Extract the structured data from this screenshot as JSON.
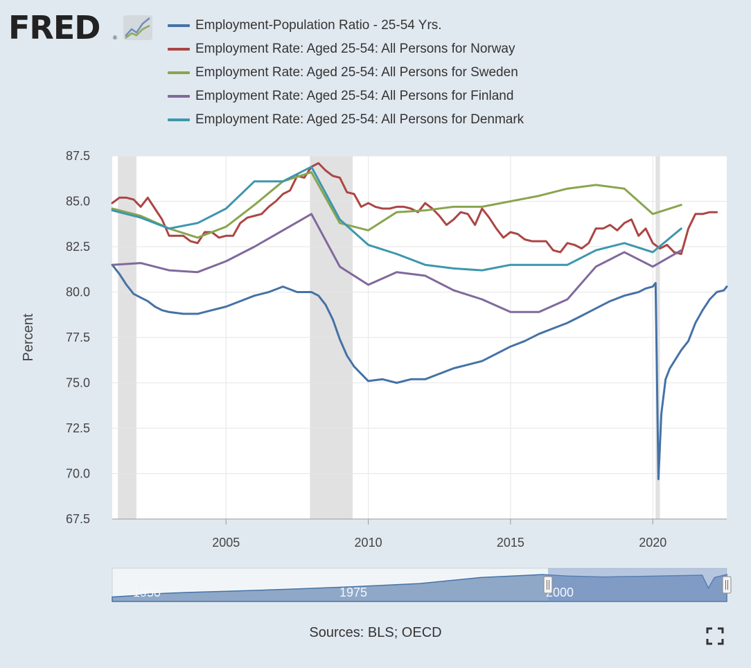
{
  "header": {
    "logo_text": "FRED",
    "logo_reg": "®"
  },
  "sources_text": "Sources: BLS; OECD",
  "icons": {
    "logo_chart": "fred-chart-icon",
    "fullscreen": "fullscreen-icon"
  },
  "colors": {
    "background": "#e1e9f0",
    "plot_bg": "#ffffff",
    "recession": "#e1e1e1",
    "grid": "#e6e6e6",
    "navigator_fill": "#8fa8c8",
    "navigator_selection": "#6f8fc0"
  },
  "navigator": {
    "labels": [
      "1950",
      "1975",
      "2000"
    ]
  },
  "chart_data": {
    "type": "line",
    "ylabel": "Percent",
    "xlim": [
      2001.0,
      2022.6
    ],
    "ylim": [
      67.5,
      87.5
    ],
    "yticks": [
      "67.5",
      "70.0",
      "72.5",
      "75.0",
      "77.5",
      "80.0",
      "82.5",
      "85.0",
      "87.5"
    ],
    "xticks": [
      "2005",
      "2010",
      "2015",
      "2020"
    ],
    "grid": true,
    "legend_position": "top",
    "recessions": [
      [
        2001.2,
        2001.85
      ],
      [
        2007.95,
        2009.45
      ],
      [
        2020.1,
        2020.25
      ]
    ],
    "series": [
      {
        "name": "Employment-Population Ratio - 25-54 Yrs.",
        "color": "#4572a7",
        "x": [
          2001.0,
          2001.25,
          2001.5,
          2001.75,
          2002.0,
          2002.25,
          2002.5,
          2002.75,
          2003.0,
          2003.5,
          2004.0,
          2004.5,
          2005.0,
          2005.5,
          2006.0,
          2006.5,
          2007.0,
          2007.5,
          2008.0,
          2008.25,
          2008.5,
          2008.75,
          2009.0,
          2009.25,
          2009.5,
          2009.75,
          2010.0,
          2010.5,
          2011.0,
          2011.5,
          2012.0,
          2012.5,
          2013.0,
          2013.5,
          2014.0,
          2014.5,
          2015.0,
          2015.5,
          2016.0,
          2016.5,
          2017.0,
          2017.5,
          2018.0,
          2018.5,
          2019.0,
          2019.5,
          2019.75,
          2020.0,
          2020.1,
          2020.2,
          2020.3,
          2020.45,
          2020.6,
          2020.8,
          2021.0,
          2021.25,
          2021.5,
          2021.75,
          2022.0,
          2022.25,
          2022.5,
          2022.6
        ],
        "y": [
          81.5,
          81.0,
          80.4,
          79.9,
          79.7,
          79.5,
          79.2,
          79.0,
          78.9,
          78.8,
          78.8,
          79.0,
          79.2,
          79.5,
          79.8,
          80.0,
          80.3,
          80.0,
          80.0,
          79.8,
          79.3,
          78.5,
          77.4,
          76.5,
          75.9,
          75.5,
          75.1,
          75.2,
          75.0,
          75.2,
          75.2,
          75.5,
          75.8,
          76.0,
          76.2,
          76.6,
          77.0,
          77.3,
          77.7,
          78.0,
          78.3,
          78.7,
          79.1,
          79.5,
          79.8,
          80.0,
          80.2,
          80.3,
          80.5,
          69.7,
          73.3,
          75.2,
          75.8,
          76.3,
          76.8,
          77.3,
          78.3,
          79.0,
          79.6,
          80.0,
          80.1,
          80.3
        ]
      },
      {
        "name": "Employment Rate: Aged 25-54: All Persons for Norway",
        "color": "#aa4643",
        "x": [
          2001.0,
          2001.25,
          2001.5,
          2001.75,
          2002.0,
          2002.25,
          2002.5,
          2002.75,
          2003.0,
          2003.25,
          2003.5,
          2003.75,
          2004.0,
          2004.25,
          2004.5,
          2004.75,
          2005.0,
          2005.25,
          2005.5,
          2005.75,
          2006.0,
          2006.25,
          2006.5,
          2006.75,
          2007.0,
          2007.25,
          2007.5,
          2007.75,
          2008.0,
          2008.25,
          2008.5,
          2008.75,
          2009.0,
          2009.25,
          2009.5,
          2009.75,
          2010.0,
          2010.25,
          2010.5,
          2010.75,
          2011.0,
          2011.25,
          2011.5,
          2011.75,
          2012.0,
          2012.25,
          2012.5,
          2012.75,
          2013.0,
          2013.25,
          2013.5,
          2013.75,
          2014.0,
          2014.25,
          2014.5,
          2014.75,
          2015.0,
          2015.25,
          2015.5,
          2015.75,
          2016.0,
          2016.25,
          2016.5,
          2016.75,
          2017.0,
          2017.25,
          2017.5,
          2017.75,
          2018.0,
          2018.25,
          2018.5,
          2018.75,
          2019.0,
          2019.25,
          2019.5,
          2019.75,
          2020.0,
          2020.25,
          2020.5,
          2020.75,
          2021.0,
          2021.25,
          2021.5,
          2021.75,
          2022.0,
          2022.25
        ],
        "y": [
          84.9,
          85.2,
          85.2,
          85.1,
          84.7,
          85.2,
          84.6,
          84.0,
          83.1,
          83.1,
          83.1,
          82.8,
          82.7,
          83.3,
          83.3,
          83.0,
          83.1,
          83.1,
          83.8,
          84.1,
          84.2,
          84.3,
          84.7,
          85.0,
          85.4,
          85.6,
          86.4,
          86.3,
          86.9,
          87.1,
          86.7,
          86.4,
          86.3,
          85.5,
          85.4,
          84.7,
          84.9,
          84.7,
          84.6,
          84.6,
          84.7,
          84.7,
          84.6,
          84.4,
          84.9,
          84.6,
          84.2,
          83.7,
          84.0,
          84.4,
          84.3,
          83.7,
          84.6,
          84.1,
          83.5,
          83.0,
          83.3,
          83.2,
          82.9,
          82.8,
          82.8,
          82.8,
          82.3,
          82.2,
          82.7,
          82.6,
          82.4,
          82.7,
          83.5,
          83.5,
          83.7,
          83.4,
          83.8,
          84.0,
          83.1,
          83.5,
          82.7,
          82.4,
          82.6,
          82.2,
          82.1,
          83.5,
          84.3,
          84.3,
          84.4,
          84.4
        ]
      },
      {
        "name": "Employment Rate: Aged 25-54: All Persons for Sweden",
        "color": "#89a54e",
        "x": [
          2001.0,
          2002.0,
          2003.0,
          2004.0,
          2005.0,
          2006.0,
          2007.0,
          2008.0,
          2009.0,
          2010.0,
          2011.0,
          2012.0,
          2013.0,
          2014.0,
          2015.0,
          2016.0,
          2017.0,
          2018.0,
          2019.0,
          2020.0,
          2021.0
        ],
        "y": [
          84.6,
          84.2,
          83.5,
          83.0,
          83.6,
          84.8,
          86.1,
          86.6,
          83.8,
          83.4,
          84.4,
          84.5,
          84.7,
          84.7,
          85.0,
          85.3,
          85.7,
          85.9,
          85.7,
          84.3,
          84.8
        ]
      },
      {
        "name": "Employment Rate: Aged 25-54: All Persons for Finland",
        "color": "#80699b",
        "x": [
          2001.0,
          2002.0,
          2003.0,
          2004.0,
          2005.0,
          2006.0,
          2007.0,
          2008.0,
          2009.0,
          2010.0,
          2011.0,
          2012.0,
          2013.0,
          2014.0,
          2015.0,
          2016.0,
          2017.0,
          2018.0,
          2019.0,
          2020.0,
          2021.0
        ],
        "y": [
          81.5,
          81.6,
          81.2,
          81.1,
          81.7,
          82.5,
          83.4,
          84.3,
          81.4,
          80.4,
          81.1,
          80.9,
          80.1,
          79.6,
          78.9,
          78.9,
          79.6,
          81.4,
          82.2,
          81.4,
          82.3
        ]
      },
      {
        "name": "Employment Rate: Aged 25-54: All Persons for Denmark",
        "color": "#3d96ae",
        "x": [
          2001.0,
          2002.0,
          2003.0,
          2004.0,
          2005.0,
          2006.0,
          2007.0,
          2008.0,
          2009.0,
          2010.0,
          2011.0,
          2012.0,
          2013.0,
          2014.0,
          2015.0,
          2016.0,
          2017.0,
          2018.0,
          2019.0,
          2020.0,
          2021.0
        ],
        "y": [
          84.5,
          84.1,
          83.5,
          83.8,
          84.6,
          86.1,
          86.1,
          86.9,
          84.0,
          82.6,
          82.1,
          81.5,
          81.3,
          81.2,
          81.5,
          81.5,
          81.5,
          82.3,
          82.7,
          82.2,
          83.5
        ]
      }
    ]
  }
}
